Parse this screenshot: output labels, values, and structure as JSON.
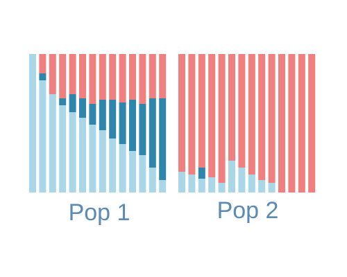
{
  "chart_data": {
    "type": "bar",
    "stacked": true,
    "normalized": true,
    "ylim": [
      0,
      1
    ],
    "grid": false,
    "legend": "none",
    "colors": {
      "light_blue": "#aad7e8",
      "dark_blue": "#2e86ad",
      "red": "#f07f7f"
    },
    "groups": [
      {
        "label": "Pop 1",
        "bars": [
          {
            "light_blue": 1.0,
            "dark_blue": 0.0,
            "red": 0.0
          },
          {
            "light_blue": 0.81,
            "dark_blue": 0.05,
            "red": 0.14
          },
          {
            "light_blue": 0.71,
            "dark_blue": 0.0,
            "red": 0.29
          },
          {
            "light_blue": 0.63,
            "dark_blue": 0.05,
            "red": 0.32
          },
          {
            "light_blue": 0.58,
            "dark_blue": 0.13,
            "red": 0.29
          },
          {
            "light_blue": 0.54,
            "dark_blue": 0.14,
            "red": 0.32
          },
          {
            "light_blue": 0.49,
            "dark_blue": 0.15,
            "red": 0.36
          },
          {
            "light_blue": 0.45,
            "dark_blue": 0.22,
            "red": 0.33
          },
          {
            "light_blue": 0.39,
            "dark_blue": 0.28,
            "red": 0.33
          },
          {
            "light_blue": 0.35,
            "dark_blue": 0.3,
            "red": 0.35
          },
          {
            "light_blue": 0.3,
            "dark_blue": 0.37,
            "red": 0.33
          },
          {
            "light_blue": 0.27,
            "dark_blue": 0.37,
            "red": 0.36
          },
          {
            "light_blue": 0.18,
            "dark_blue": 0.5,
            "red": 0.32
          },
          {
            "light_blue": 0.09,
            "dark_blue": 0.59,
            "red": 0.32
          }
        ]
      },
      {
        "label": "Pop 2",
        "bars": [
          {
            "light_blue": 0.15,
            "dark_blue": 0.0,
            "red": 0.85
          },
          {
            "light_blue": 0.13,
            "dark_blue": 0.0,
            "red": 0.87
          },
          {
            "light_blue": 0.1,
            "dark_blue": 0.08,
            "red": 0.82
          },
          {
            "light_blue": 0.11,
            "dark_blue": 0.0,
            "red": 0.89
          },
          {
            "light_blue": 0.07,
            "dark_blue": 0.0,
            "red": 0.93
          },
          {
            "light_blue": 0.23,
            "dark_blue": 0.0,
            "red": 0.77
          },
          {
            "light_blue": 0.18,
            "dark_blue": 0.0,
            "red": 0.82
          },
          {
            "light_blue": 0.13,
            "dark_blue": 0.0,
            "red": 0.87
          },
          {
            "light_blue": 0.09,
            "dark_blue": 0.0,
            "red": 0.91
          },
          {
            "light_blue": 0.07,
            "dark_blue": 0.0,
            "red": 0.93
          },
          {
            "light_blue": 0.0,
            "dark_blue": 0.0,
            "red": 1.0
          },
          {
            "light_blue": 0.0,
            "dark_blue": 0.0,
            "red": 1.0
          },
          {
            "light_blue": 0.0,
            "dark_blue": 0.0,
            "red": 1.0
          },
          {
            "light_blue": 0.0,
            "dark_blue": 0.0,
            "red": 1.0
          }
        ]
      }
    ]
  }
}
